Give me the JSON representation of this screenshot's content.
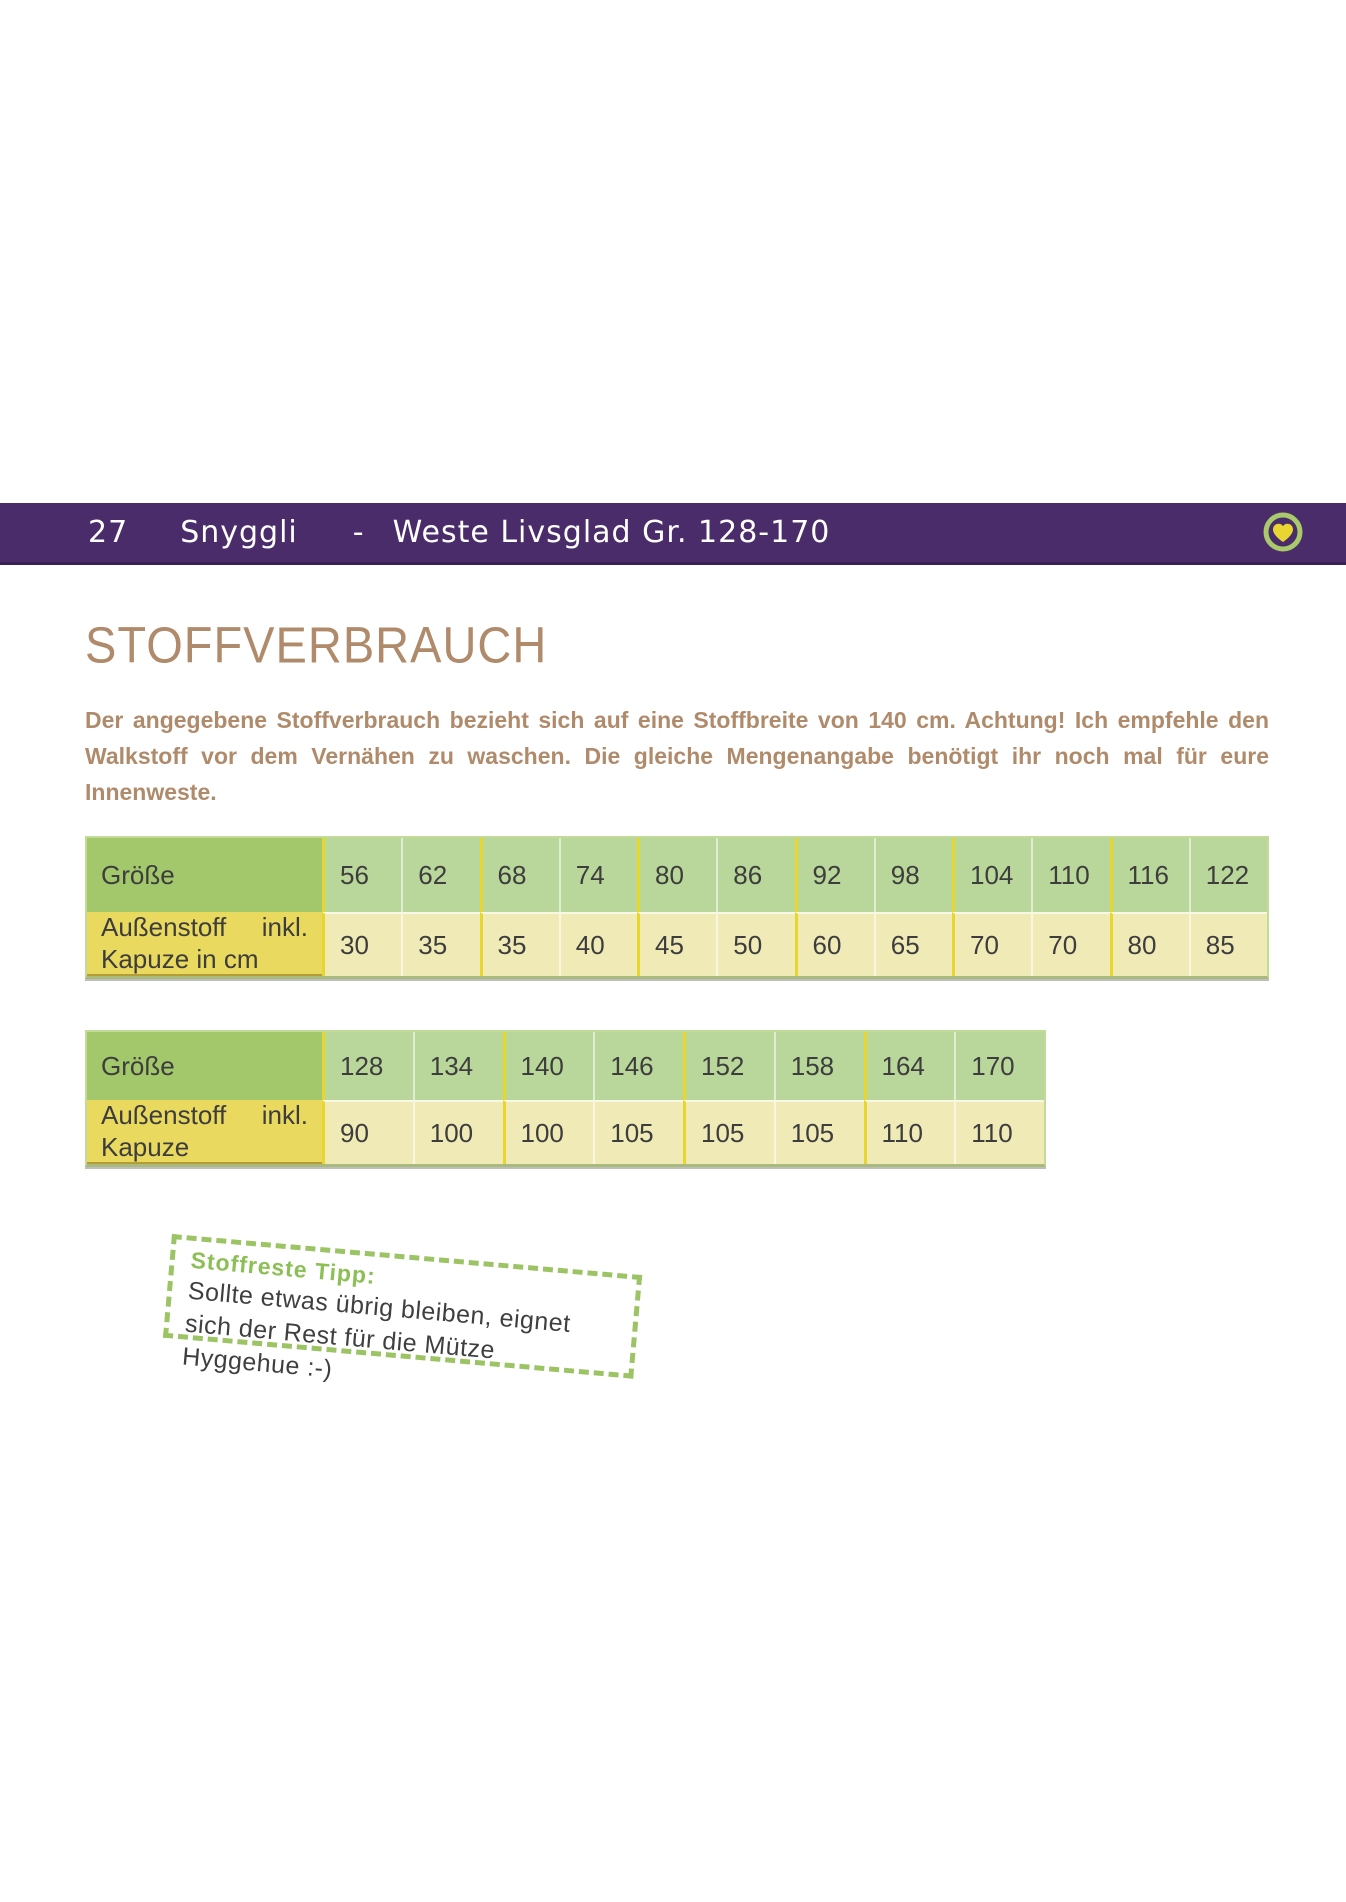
{
  "header": {
    "page_number": "27",
    "brand": "Snyggli",
    "separator": "-",
    "title": "Weste Livsglad Gr. 128-170",
    "icon": "heart-in-ring-icon"
  },
  "section": {
    "heading": "STOFFVERBRAUCH",
    "paragraph": "Der angegebene Stoffverbrauch bezieht sich auf eine Stoffbreite von 140 cm. Achtung! Ich empfehle den Walkstoff vor dem Vernähen zu waschen. Die gleiche Mengenangabe benötigt ihr noch mal für eure Innenweste."
  },
  "tables": [
    {
      "size_label": "Größe",
      "fabric_label_a": "Außenstoff",
      "fabric_label_b": "inkl.",
      "fabric_label_line2": "Kapuze in cm",
      "sizes": [
        "56",
        "62",
        "68",
        "74",
        "80",
        "86",
        "92",
        "98",
        "104",
        "110",
        "116",
        "122"
      ],
      "fabric_cm": [
        "30",
        "35",
        "35",
        "40",
        "45",
        "50",
        "60",
        "65",
        "70",
        "70",
        "80",
        "85"
      ]
    },
    {
      "size_label": "Größe",
      "fabric_label_a": "Außenstoff",
      "fabric_label_b": "inkl.",
      "fabric_label_line2": "Kapuze",
      "sizes": [
        "128",
        "134",
        "140",
        "146",
        "152",
        "158",
        "164",
        "170"
      ],
      "fabric_cm": [
        "90",
        "100",
        "100",
        "105",
        "105",
        "105",
        "110",
        "110"
      ]
    }
  ],
  "tip": {
    "title": "Stoffreste Tipp:",
    "text": "Sollte etwas übrig bleiben, eignet sich der Rest für die Mütze Hyggehue :-)"
  },
  "colors": {
    "bar_purple": "#4a2c6b",
    "bar_purple_dark": "#392158",
    "tan": "#b08b6b",
    "green_label": "#a3c76b",
    "green_cell": "#b9d79a",
    "yellow_label": "#e9d95f",
    "yellow_cell": "#efeab6",
    "border_bright": "#e8d62d",
    "table_outline": "#c3db99",
    "tip_green": "#9cc464",
    "tip_title_green": "#8cbf55",
    "ink": "#3d3d3d",
    "heart_yellow": "#e8d532",
    "ring_green": "#a9c96b"
  }
}
